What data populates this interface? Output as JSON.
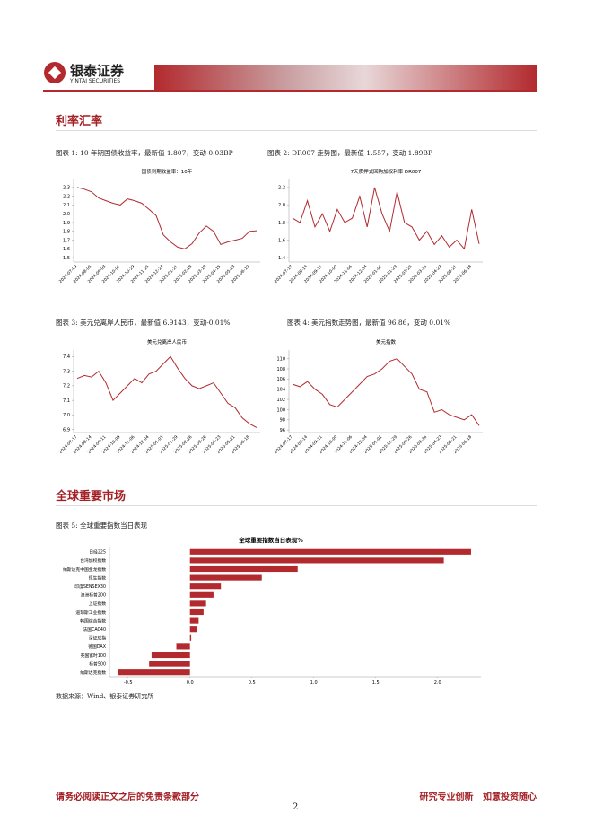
{
  "header": {
    "logo": "银泰证券",
    "logo_en": "YINTAI SECURITIES"
  },
  "sections": [
    {
      "title": "利率汇率"
    },
    {
      "title": "全球重要市场"
    }
  ],
  "captions": [
    "图表 1: 10 年期国债收益率，最新值 1.807，变动-0.03BP",
    "图表 2: DR007 走势图，最新值 1.557，变动 1.89BP",
    "图表 3: 美元兑离岸人民币，最新值 6.9143，变动-0.01%",
    "图表 4: 美元指数走势图，最新值 96.86，变动 0.01%",
    "图表 5: 全球重要指数当日表现"
  ],
  "chart_data": [
    {
      "type": "line",
      "title": "国债到期收益率：10年",
      "color": "#b22a2e",
      "categories": [
        "2024-07-09",
        null,
        "2024-08-06",
        null,
        "2024-09-03",
        null,
        "2024-10-01",
        null,
        "2024-10-29",
        null,
        "2024-11-26",
        null,
        "2024-12-24",
        null,
        "2025-01-21",
        null,
        "2025-02-18",
        null,
        "2025-03-18",
        null,
        "2025-04-15",
        null,
        "2025-05-13",
        null,
        "2025-06-10",
        null
      ],
      "values": [
        2.3,
        2.28,
        2.25,
        2.18,
        2.15,
        2.12,
        2.1,
        2.17,
        2.15,
        2.12,
        2.05,
        1.98,
        1.76,
        1.68,
        1.62,
        1.6,
        1.66,
        1.78,
        1.86,
        1.8,
        1.65,
        1.68,
        1.7,
        1.72,
        1.8,
        1.807
      ],
      "ylim": [
        1.45,
        2.35
      ],
      "yticks": [
        1.5,
        1.6,
        1.7,
        1.8,
        1.9,
        {
          "value": 2,
          "label": "2.0"
        },
        2.1,
        2.2,
        2.3
      ]
    },
    {
      "type": "line",
      "title": "7天质押式回购加权利率 DR007",
      "color": "#b22a2e",
      "categories": [
        "2024-07-17",
        null,
        "2024-08-14",
        null,
        "2024-09-11",
        null,
        "2024-10-09",
        null,
        "2024-11-06",
        null,
        "2024-12-04",
        null,
        "2025-01-01",
        null,
        "2025-01-29",
        null,
        "2025-02-26",
        null,
        "2025-03-26",
        null,
        "2025-04-23",
        null,
        "2025-05-21",
        null,
        "2025-06-18",
        null
      ],
      "values": [
        1.85,
        1.8,
        2.05,
        1.75,
        1.9,
        1.7,
        1.95,
        1.8,
        1.85,
        2.1,
        1.75,
        2.2,
        1.9,
        1.7,
        2.15,
        1.8,
        1.75,
        1.6,
        1.7,
        1.55,
        1.65,
        1.52,
        1.6,
        1.5,
        1.95,
        1.557
      ],
      "ylim": [
        1.35,
        2.25
      ],
      "yticks": [
        1.4,
        1.6,
        1.8,
        {
          "value": 2,
          "label": "2.0"
        },
        2.2
      ]
    },
    {
      "type": "line",
      "title": "美元兑离岸人民币",
      "color": "#b22a2e",
      "categories": [
        "2024-07-17",
        null,
        "2024-08-14",
        null,
        "2024-09-11",
        null,
        "2024-10-09",
        null,
        "2024-11-06",
        null,
        "2024-12-04",
        null,
        "2025-01-01",
        null,
        "2025-01-29",
        null,
        "2025-02-26",
        null,
        "2025-03-26",
        null,
        "2025-04-23",
        null,
        "2025-05-21",
        null,
        "2025-06-18",
        null
      ],
      "values": [
        7.25,
        7.27,
        7.26,
        7.3,
        7.22,
        7.1,
        7.15,
        7.2,
        7.25,
        7.22,
        7.28,
        7.3,
        7.35,
        7.4,
        7.32,
        7.25,
        7.2,
        7.18,
        7.2,
        7.22,
        7.15,
        7.08,
        7.05,
        6.98,
        6.94,
        6.9143
      ],
      "ylim": [
        6.88,
        7.42
      ],
      "yticks": [
        6.9,
        {
          "value": 7,
          "label": "7.0"
        },
        7.1,
        7.2,
        7.3,
        7.4
      ]
    },
    {
      "type": "line",
      "title": "美元指数",
      "color": "#b22a2e",
      "categories": [
        "2024-07-17",
        null,
        "2024-08-14",
        null,
        "2024-09-11",
        null,
        "2024-10-09",
        null,
        "2024-11-06",
        null,
        "2024-12-04",
        null,
        "2025-01-01",
        null,
        "2025-01-29",
        null,
        "2025-02-26",
        null,
        "2025-03-26",
        null,
        "2025-04-23",
        null,
        "2025-05-21",
        null,
        "2025-06-18",
        null
      ],
      "values": [
        105,
        104.5,
        105.5,
        104,
        103,
        101,
        100.5,
        102,
        103.5,
        105,
        106.5,
        107,
        108,
        109.5,
        110,
        108.5,
        107,
        104,
        103.5,
        99.5,
        100,
        99,
        98.5,
        98,
        99,
        96.86
      ],
      "ylim": [
        95.5,
        111
      ],
      "yticks": [
        96,
        98,
        100,
        102,
        104,
        106,
        108,
        110
      ]
    },
    {
      "type": "hbar",
      "title": "全球重要指数当日表现%",
      "color": "#b22a2e",
      "categories": [
        "日经225",
        "台湾加权指数",
        "纳斯达克中国金龙指数",
        "恒生指数",
        "印度SENSEX30",
        "澳洲标普200",
        "上证指数",
        "道琼斯工业指数",
        "韩国综合指数",
        "法国CAC40",
        "深证成指",
        "德国DAX",
        "英国富时100",
        "标普500",
        "纳斯达克指数"
      ],
      "values": [
        2.27,
        2.05,
        0.87,
        0.58,
        0.25,
        0.19,
        0.13,
        0.11,
        0.07,
        0.06,
        0.01,
        -0.11,
        -0.31,
        -0.33,
        -0.58
      ],
      "xlim": [
        -0.65,
        2.35
      ],
      "xticks": [
        -0.5,
        {
          "value": 0,
          "label": "0.0"
        },
        0.5,
        {
          "value": 1,
          "label": "1.0"
        },
        1.5,
        {
          "value": 2,
          "label": "2.0"
        }
      ]
    }
  ],
  "source": "数据来源：Wind、银泰证券研究所",
  "footer": {
    "left": "请务必阅读正文之后的免责条款部分",
    "right": "研究专业创新   如意投资随心",
    "page": "2"
  }
}
